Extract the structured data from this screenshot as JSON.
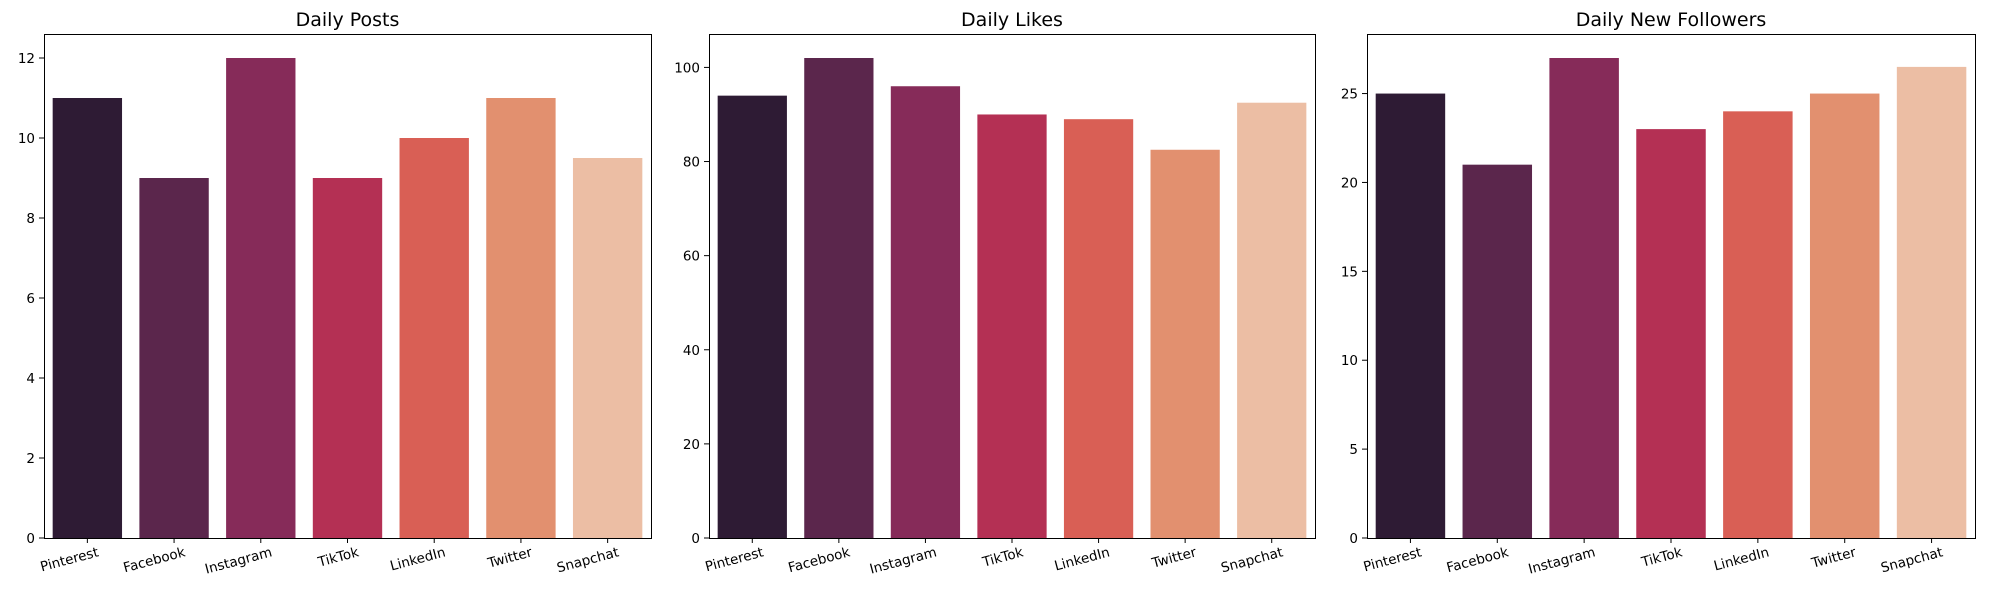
{
  "palette": [
    "#2e1b34",
    "#5b264c",
    "#862b59",
    "#b43054",
    "#d95f55",
    "#e2906f",
    "#ecbea4"
  ],
  "chart_data": [
    {
      "type": "bar",
      "title": "Daily Posts",
      "xlabel": "",
      "ylabel": "",
      "categories": [
        "Pinterest",
        "Facebook",
        "Instagram",
        "TikTok",
        "LinkedIn",
        "Twitter",
        "Snapchat"
      ],
      "values": [
        11,
        9,
        12,
        9,
        10,
        11,
        9.5
      ],
      "ylim": [
        0,
        12.6
      ],
      "yticks": [
        0,
        2,
        4,
        6,
        8,
        10,
        12
      ],
      "grid": false,
      "legend": "none"
    },
    {
      "type": "bar",
      "title": "Daily Likes",
      "xlabel": "",
      "ylabel": "",
      "categories": [
        "Pinterest",
        "Facebook",
        "Instagram",
        "TikTok",
        "LinkedIn",
        "Twitter",
        "Snapchat"
      ],
      "values": [
        94,
        102,
        96,
        90,
        89,
        82.5,
        92.5
      ],
      "ylim": [
        0,
        107.1
      ],
      "yticks": [
        0,
        20,
        40,
        60,
        80,
        100
      ],
      "grid": false,
      "legend": "none"
    },
    {
      "type": "bar",
      "title": "Daily New Followers",
      "xlabel": "",
      "ylabel": "",
      "categories": [
        "Pinterest",
        "Facebook",
        "Instagram",
        "TikTok",
        "LinkedIn",
        "Twitter",
        "Snapchat"
      ],
      "values": [
        25,
        21,
        27,
        23,
        24,
        25,
        26.5
      ],
      "ylim": [
        0,
        28.35
      ],
      "yticks": [
        0,
        5,
        10,
        15,
        20,
        25
      ],
      "grid": false,
      "legend": "none"
    }
  ]
}
